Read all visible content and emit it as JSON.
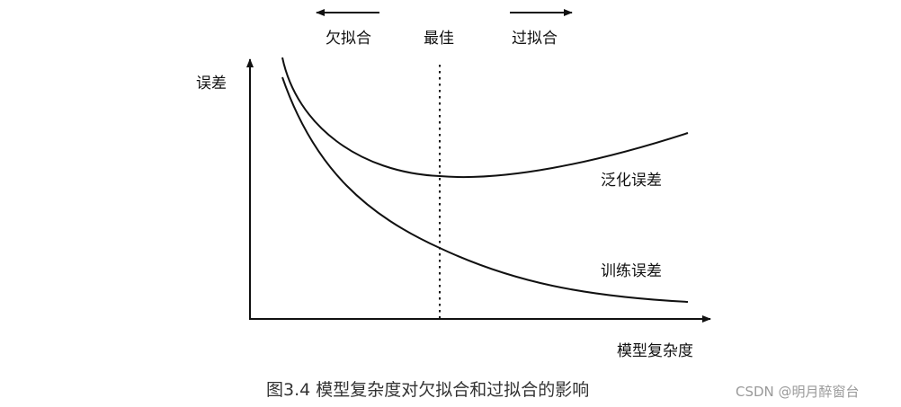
{
  "header": {
    "underfit_label": "欠拟合",
    "best_label": "最佳",
    "overfit_label": "过拟合"
  },
  "axes": {
    "y_label": "误差",
    "x_label": "模型复杂度"
  },
  "curves": {
    "generalization_label": "泛化误差",
    "training_label": "训练误差"
  },
  "caption": "图3.4 模型复杂度对欠拟合和过拟合的影响",
  "watermark": "CSDN @明月醉窗台",
  "colors": {
    "ink": "#111111",
    "caption": "#333333",
    "watermark": "#9a9a9a"
  }
}
